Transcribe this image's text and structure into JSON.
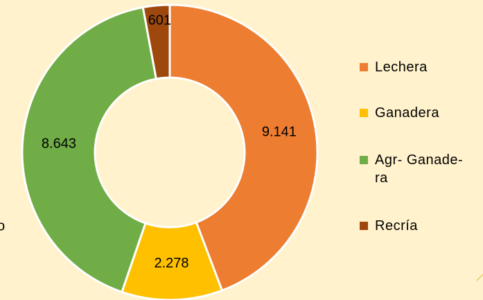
{
  "chart_data": {
    "type": "donut",
    "categories": [
      "Lechera",
      "Ganadera",
      "Agr- Ganade-\nra",
      "Recría"
    ],
    "values": [
      9141,
      2278,
      8643,
      601
    ],
    "value_labels": [
      "9.141",
      "2.278",
      "8.643",
      "601"
    ],
    "colors": [
      "#ED7D31",
      "#FFC000",
      "#70AD47",
      "#9E480E"
    ],
    "legend": "right"
  },
  "cropped_text": "o"
}
